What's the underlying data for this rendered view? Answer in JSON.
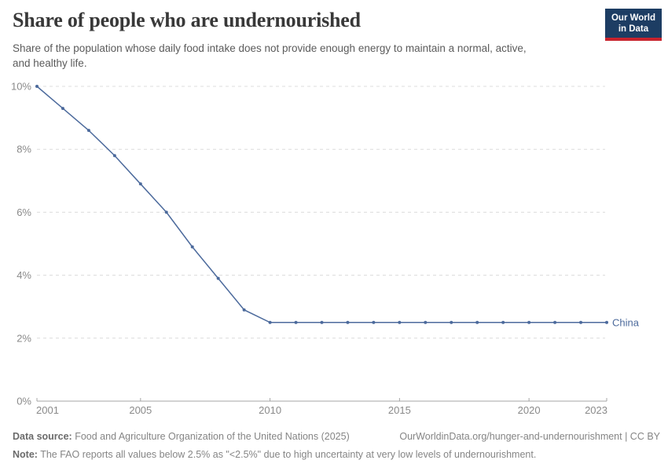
{
  "header": {
    "title": "Share of people who are undernourished",
    "subtitle_line1": "Share of the population whose daily food intake does not provide enough energy to maintain a normal, active,",
    "subtitle_line2": "and healthy life.",
    "logo": {
      "line1": "Our World",
      "line2": "in Data",
      "bg_color": "#1d3d63",
      "accent_color": "#c8232d"
    }
  },
  "chart_data": {
    "type": "line",
    "title": "Share of people who are undernourished",
    "x": [
      2001,
      2002,
      2003,
      2004,
      2005,
      2006,
      2007,
      2008,
      2009,
      2010,
      2011,
      2012,
      2013,
      2014,
      2015,
      2016,
      2017,
      2018,
      2019,
      2020,
      2021,
      2022,
      2023
    ],
    "series": [
      {
        "name": "China",
        "color": "#4C6A9C",
        "values": [
          10.0,
          9.3,
          8.6,
          7.8,
          6.9,
          6.0,
          4.9,
          3.9,
          2.9,
          2.5,
          2.5,
          2.5,
          2.5,
          2.5,
          2.5,
          2.5,
          2.5,
          2.5,
          2.5,
          2.5,
          2.5,
          2.5,
          2.5
        ]
      }
    ],
    "xlabel": "",
    "ylabel": "",
    "xlim": [
      2001,
      2023
    ],
    "ylim": [
      0,
      10
    ],
    "yticks": [
      0,
      2,
      4,
      6,
      8,
      10
    ],
    "ytick_suffix": "%",
    "xticks": [
      2001,
      2005,
      2010,
      2015,
      2020,
      2023
    ],
    "grid": "horizontal-dashed",
    "legend_position": "end-of-line",
    "marker": "dot"
  },
  "footer": {
    "datasource_label": "Data source:",
    "datasource_text": "Food and Agriculture Organization of the United Nations (2025)",
    "link": "OurWorldinData.org/hunger-and-undernourishment | CC BY",
    "note_label": "Note:",
    "note_text": "The FAO reports all values below 2.5% as \"<2.5%\" due to high uncertainty at very low levels of undernourishment."
  }
}
